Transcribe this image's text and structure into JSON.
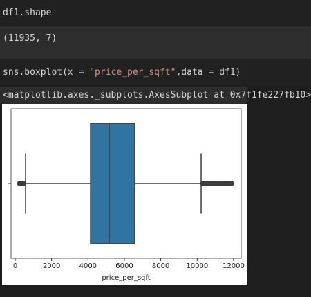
{
  "cells": [
    {
      "input": [
        "df1.shape"
      ],
      "output": "(11935, 7)"
    },
    {
      "input": [
        "sns.boxplot(x = ",
        "\"price_per_sqft\"",
        ",data = df1)"
      ],
      "output": "<matplotlib.axes._subplots.AxesSubplot at 0x7f1fe227fb10>"
    }
  ],
  "chart_data": {
    "type": "box",
    "xlabel": "price_per_sqft",
    "color": "#3274a1",
    "xlim": [
      -228,
      12418
    ],
    "xticks": [
      0,
      2000,
      4000,
      6000,
      8000,
      10000,
      12000
    ],
    "whisker_low": 570,
    "q1": 4140,
    "median": 5165,
    "q3": 6570,
    "whisker_high": 10216,
    "outliers": [
      230,
      300,
      350,
      420,
      480,
      10300,
      10400,
      10500,
      10600,
      10700,
      10800,
      10900,
      11000,
      11100,
      11200,
      11300,
      11400,
      11500,
      11600,
      11700,
      11800,
      11900
    ]
  }
}
